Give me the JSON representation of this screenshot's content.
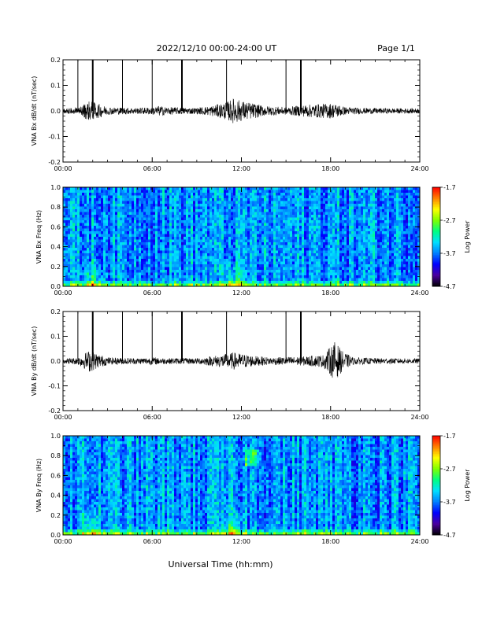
{
  "header": {
    "date_range": "2022/12/10  00:00-24:00 UT",
    "page": "Page 1/1"
  },
  "xaxis": {
    "title": "Universal Time (hh:mm)",
    "ticks": [
      "00:00",
      "06:00",
      "12:00",
      "18:00",
      "24:00"
    ],
    "range_hours": [
      0,
      24
    ]
  },
  "colors": {
    "trace": "#000000",
    "colormap": [
      "#000000",
      "#4b00a0",
      "#0000ff",
      "#0080ff",
      "#00e0ff",
      "#00ff80",
      "#80ff00",
      "#ffff00",
      "#ff8000",
      "#ff0000"
    ]
  },
  "chart_data": [
    {
      "type": "line",
      "ylabel": "VNA Bx dB/dt (nT/sec)",
      "ylim": [
        -0.2,
        0.2
      ],
      "yticks": [
        "0.2",
        "0.1",
        "0.0",
        "-0.1",
        "-0.2"
      ],
      "spike_times_h": [
        1.0,
        2.0,
        4.0,
        6.0,
        8.0,
        11.0,
        15.0,
        16.0
      ],
      "spike_widths": [
        1,
        2,
        1,
        1,
        2,
        1,
        1,
        2
      ],
      "envelope": {
        "x": [
          0,
          1,
          1.8,
          2.3,
          3,
          5,
          6,
          6.5,
          7,
          9,
          10,
          11,
          11.5,
          12,
          12.8,
          13.5,
          15,
          16.5,
          18,
          18.5,
          19,
          20,
          22,
          24
        ],
        "amp": [
          0.01,
          0.015,
          0.04,
          0.03,
          0.015,
          0.012,
          0.015,
          0.02,
          0.015,
          0.012,
          0.02,
          0.035,
          0.05,
          0.04,
          0.03,
          0.02,
          0.015,
          0.025,
          0.03,
          0.025,
          0.015,
          0.012,
          0.01,
          0.01
        ]
      }
    },
    {
      "type": "heatmap",
      "ylabel": "VNA Bx Freq (Hz)",
      "ylim": [
        0,
        1.0
      ],
      "yticks": [
        "1.0",
        "0.8",
        "0.6",
        "0.4",
        "0.2",
        "0.0"
      ],
      "colorbar": {
        "label": "Log Power",
        "ticks": [
          "-1.7",
          "-2.7",
          "-3.7",
          "-4.7"
        ],
        "range": [
          -4.7,
          -1.7
        ]
      },
      "features": {
        "low_freq_hot_times_h": [
          2.0,
          11.5
        ]
      }
    },
    {
      "type": "line",
      "ylabel": "VNA By dB/dt (nT/sec)",
      "ylim": [
        -0.2,
        0.2
      ],
      "yticks": [
        "0.2",
        "0.1",
        "0.0",
        "-0.1",
        "-0.2"
      ],
      "spike_times_h": [
        1.0,
        2.0,
        4.0,
        6.0,
        8.0,
        11.0,
        15.0,
        16.0
      ],
      "spike_widths": [
        1,
        2,
        1,
        1,
        2,
        1,
        1,
        2
      ],
      "envelope": {
        "x": [
          0,
          1,
          1.8,
          2.3,
          3,
          5,
          6,
          7,
          9,
          10,
          11,
          11.5,
          12,
          13,
          14,
          16,
          17.5,
          18.3,
          18.8,
          19.5,
          21,
          24
        ],
        "amp": [
          0.01,
          0.015,
          0.045,
          0.03,
          0.015,
          0.012,
          0.015,
          0.012,
          0.012,
          0.02,
          0.03,
          0.035,
          0.03,
          0.02,
          0.015,
          0.018,
          0.025,
          0.08,
          0.04,
          0.015,
          0.012,
          0.01
        ]
      }
    },
    {
      "type": "heatmap",
      "ylabel": "VNA By Freq (Hz)",
      "ylim": [
        0,
        1.0
      ],
      "yticks": [
        "1.0",
        "0.8",
        "0.6",
        "0.4",
        "0.2",
        "0.0"
      ],
      "colorbar": {
        "label": "Log Power",
        "ticks": [
          "-1.7",
          "-2.7",
          "-3.7",
          "-4.7"
        ],
        "range": [
          -4.7,
          -1.7
        ]
      },
      "features": {
        "low_freq_hot_times_h": [
          2.0,
          11.5
        ],
        "patch_h": [
          12.2,
          13.2
        ],
        "patch_freq": [
          0.7,
          0.85
        ]
      }
    }
  ]
}
